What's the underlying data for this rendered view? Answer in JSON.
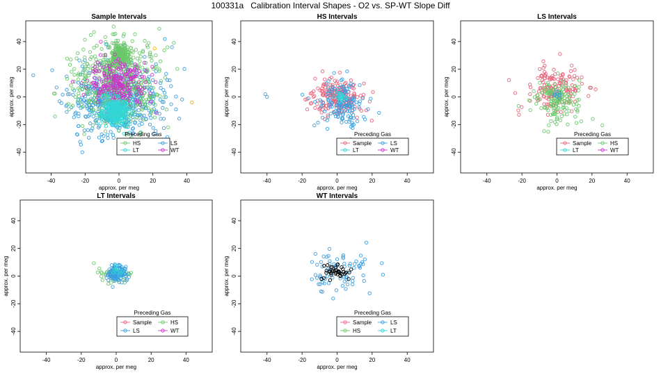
{
  "figure": {
    "title": "100331a   Calibration Interval Shapes - O2 vs. SP-WT Slope Diff"
  },
  "colors": {
    "Sample": "#e8627a",
    "HS": "#6ac86a",
    "LS": "#3a9ee0",
    "LT": "#33d6d6",
    "WT": "#cc33cc",
    "Black": "#000000",
    "Orange": "#f4b400"
  },
  "chart_data": [
    {
      "type": "scatter",
      "title": "Sample Intervals",
      "xlabel": "approx. per meg",
      "ylabel": "approx. per meg",
      "xlim": [
        -55,
        55
      ],
      "ylim": [
        -55,
        55
      ],
      "xticks": [
        -40,
        -20,
        0,
        20,
        40
      ],
      "yticks": [
        -40,
        -20,
        0,
        20,
        40
      ],
      "legend": {
        "title": "Preceding Gas",
        "entries": [
          "HS",
          "LS",
          "LT",
          "WT"
        ]
      },
      "series": [
        {
          "name": "LS",
          "color_key": "LS",
          "cx": -2,
          "cy": -3,
          "sx": 14,
          "sy": 13,
          "n": 500,
          "seed": 11
        },
        {
          "name": "HS",
          "color_key": "HS",
          "cx": -1,
          "cy": 10,
          "sx": 12,
          "sy": 15,
          "n": 520,
          "seed": 12
        },
        {
          "name": "HS",
          "color_key": "HS",
          "cx": 0,
          "cy": 30,
          "sx": 3,
          "sy": 4,
          "n": 260,
          "seed": 13
        },
        {
          "name": "WT",
          "color_key": "WT",
          "cx": 0,
          "cy": 10,
          "sx": 9,
          "sy": 9,
          "n": 230,
          "seed": 14
        },
        {
          "name": "LT",
          "color_key": "LT",
          "cx": -2,
          "cy": -10,
          "sx": 4,
          "sy": 5,
          "n": 300,
          "seed": 15
        }
      ],
      "points": [
        {
          "x": 21,
          "y": 35,
          "color_key": "Orange"
        },
        {
          "x": 43,
          "y": -4,
          "color_key": "Orange"
        }
      ]
    },
    {
      "type": "scatter",
      "title": "HS Intervals",
      "xlabel": "approx. per meg",
      "ylabel": "approx. per meg",
      "xlim": [
        -55,
        55
      ],
      "ylim": [
        -55,
        55
      ],
      "xticks": [
        -40,
        -20,
        0,
        20,
        40
      ],
      "yticks": [
        -40,
        -20,
        0,
        20,
        40
      ],
      "legend": {
        "title": "Preceding Gas",
        "entries": [
          "Sample",
          "LS",
          "LT",
          "WT"
        ]
      },
      "series": [
        {
          "name": "Sample",
          "color_key": "Sample",
          "cx": 0,
          "cy": 0,
          "sx": 8,
          "sy": 7,
          "n": 190,
          "seed": 21
        },
        {
          "name": "LS",
          "color_key": "LS",
          "cx": 2,
          "cy": -4,
          "sx": 7,
          "sy": 8,
          "n": 150,
          "seed": 22
        },
        {
          "name": "LT",
          "color_key": "LT",
          "cx": 1,
          "cy": 0,
          "sx": 2,
          "sy": 2,
          "n": 20,
          "seed": 23
        }
      ],
      "points": [
        {
          "x": -41,
          "y": 2,
          "color_key": "LS"
        },
        {
          "x": -40,
          "y": 0,
          "color_key": "LS"
        }
      ]
    },
    {
      "type": "scatter",
      "title": "LS Intervals",
      "xlabel": "approx. per meg",
      "ylabel": "approx. per meg",
      "xlim": [
        -55,
        55
      ],
      "ylim": [
        -55,
        55
      ],
      "xticks": [
        -40,
        -20,
        0,
        20,
        40
      ],
      "yticks": [
        -40,
        -20,
        0,
        20,
        40
      ],
      "legend": {
        "title": "Preceding Gas",
        "entries": [
          "Sample",
          "HS",
          "LT",
          "WT"
        ]
      },
      "series": [
        {
          "name": "Sample",
          "color_key": "Sample",
          "cx": -1,
          "cy": 6,
          "sx": 8,
          "sy": 8,
          "n": 150,
          "seed": 31
        },
        {
          "name": "HS",
          "color_key": "HS",
          "cx": 0,
          "cy": -2,
          "sx": 7,
          "sy": 8,
          "n": 150,
          "seed": 32
        },
        {
          "name": "LS",
          "color_key": "LS",
          "cx": 0,
          "cy": 2,
          "sx": 2,
          "sy": 2,
          "n": 8,
          "seed": 33
        }
      ],
      "points": []
    },
    {
      "type": "scatter",
      "title": "LT Intervals",
      "xlabel": "approx. per meg",
      "ylabel": "approx. per meg",
      "xlim": [
        -55,
        55
      ],
      "ylim": [
        -55,
        55
      ],
      "xticks": [
        -40,
        -20,
        0,
        20,
        40
      ],
      "yticks": [
        -40,
        -20,
        0,
        20,
        40
      ],
      "legend": {
        "title": "Preceding Gas",
        "entries": [
          "Sample",
          "HS",
          "LS",
          "WT"
        ]
      },
      "series": [
        {
          "name": "HS",
          "color_key": "HS",
          "cx": 0,
          "cy": 1,
          "sx": 5,
          "sy": 3,
          "n": 45,
          "seed": 41
        },
        {
          "name": "LS",
          "color_key": "LS",
          "cx": 0,
          "cy": 2,
          "sx": 3,
          "sy": 3,
          "n": 110,
          "seed": 42
        },
        {
          "name": "LT",
          "color_key": "LT",
          "cx": 0,
          "cy": 3,
          "sx": 2,
          "sy": 2,
          "n": 10,
          "seed": 43
        }
      ],
      "points": []
    },
    {
      "type": "scatter",
      "title": "WT Intervals",
      "xlabel": "approx. per meg",
      "ylabel": "approx. per meg",
      "xlim": [
        -55,
        55
      ],
      "ylim": [
        -55,
        55
      ],
      "xticks": [
        -40,
        -20,
        0,
        20,
        40
      ],
      "yticks": [
        -40,
        -20,
        0,
        20,
        40
      ],
      "legend": {
        "title": "Preceding Gas",
        "entries": [
          "Sample",
          "LS",
          "HS",
          "LT"
        ]
      },
      "series": [
        {
          "name": "LS",
          "color_key": "LS",
          "cx": 0,
          "cy": 3,
          "sx": 9,
          "sy": 8,
          "n": 80,
          "seed": 51
        },
        {
          "name": "",
          "color_key": "Black",
          "cx": 1,
          "cy": 3,
          "sx": 4,
          "sy": 3,
          "n": 40,
          "seed": 52
        }
      ],
      "points": []
    }
  ]
}
